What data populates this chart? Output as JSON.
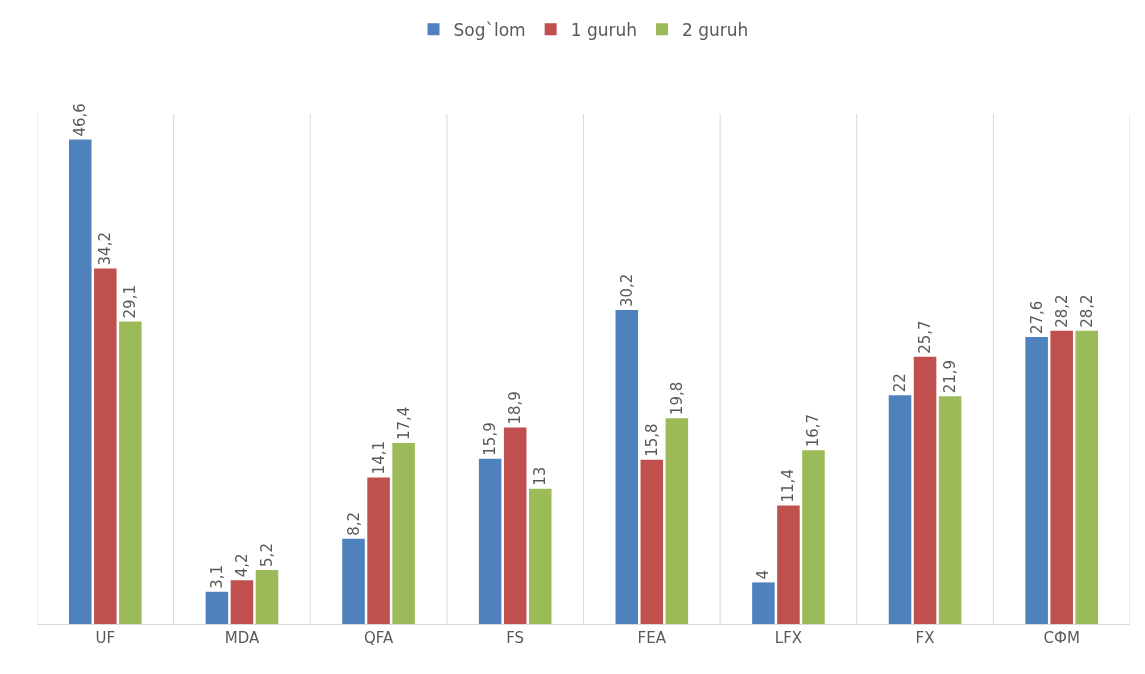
{
  "chart_data": {
    "type": "bar",
    "categories": [
      "UF",
      "MDA",
      "QFA",
      "FS",
      "FEA",
      "LFX",
      "FX",
      "СФМ"
    ],
    "series": [
      {
        "name": "Sog`lom",
        "color": "#4f81bd",
        "values": [
          46.6,
          3.1,
          8.2,
          15.9,
          30.2,
          4,
          22,
          27.6
        ],
        "value_labels": [
          "46,6",
          "3,1",
          "8,2",
          "15,9",
          "30,2",
          "4",
          "22",
          "27,6"
        ]
      },
      {
        "name": "1 guruh",
        "color": "#c0504d",
        "values": [
          34.2,
          4.2,
          14.1,
          18.9,
          15.8,
          11.4,
          25.7,
          28.2
        ],
        "value_labels": [
          "34,2",
          "4,2",
          "14,1",
          "18,9",
          "15,8",
          "11,4",
          "25,7",
          "28,2"
        ]
      },
      {
        "name": "2 guruh",
        "color": "#9bbb59",
        "values": [
          29.1,
          5.2,
          17.4,
          13,
          19.8,
          16.7,
          21.9,
          28.2
        ],
        "value_labels": [
          "29,1",
          "5,2",
          "17,4",
          "13",
          "19,8",
          "16,7",
          "21,9",
          "28,2"
        ]
      }
    ],
    "grid": "x",
    "legend": "top",
    "tick_labels": "x"
  }
}
